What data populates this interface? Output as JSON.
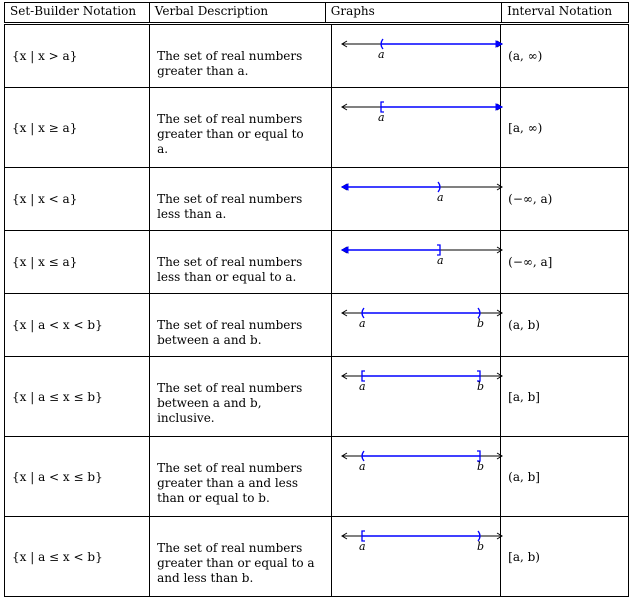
{
  "headers": [
    "Set-Builder Notation",
    "Verbal Description",
    "Graphs",
    "Interval Notation"
  ],
  "rows": [
    {
      "set_parts": [
        "{x | x > ",
        "a",
        "}"
      ],
      "desc_lines": [
        "The set of real numbers",
        "greater than a."
      ],
      "interval": "(a, ∞)",
      "graph": {
        "labels": [
          "a"
        ],
        "left": {
          "bracket": "(",
          "end": "a"
        },
        "right": {
          "end": "arrow"
        }
      }
    },
    {
      "set_parts": [
        "{x | x ≥ ",
        "a",
        "}"
      ],
      "desc_lines": [
        "The set of real numbers",
        "greater than or equal to",
        "a."
      ],
      "interval": "[a, ∞)",
      "graph": {
        "labels": [
          "a"
        ],
        "left": {
          "bracket": "[",
          "end": "a"
        },
        "right": {
          "end": "arrow"
        }
      }
    },
    {
      "set_parts": [
        "{x | x < ",
        "a",
        "}"
      ],
      "desc_lines": [
        "The set of real numbers",
        "less than a."
      ],
      "interval": "(−∞, a)",
      "graph": {
        "labels": [
          "a"
        ],
        "left": {
          "end": "arrow"
        },
        "right": {
          "bracket": ")",
          "end": "a"
        }
      }
    },
    {
      "set_parts": [
        "{x | x ≤ ",
        "a",
        "}"
      ],
      "desc_lines": [
        "The set of real numbers",
        "less than or equal to a."
      ],
      "interval": "(−∞, a]",
      "graph": {
        "labels": [
          "a"
        ],
        "left": {
          "end": "arrow"
        },
        "right": {
          "bracket": "]",
          "end": "a"
        }
      }
    },
    {
      "set_parts": [
        "{x | a < x < ",
        "b",
        "}"
      ],
      "desc_lines": [
        "The set of real numbers",
        "between a and b."
      ],
      "interval": "(a, b)",
      "graph": {
        "labels": [
          "a",
          "b"
        ],
        "left": {
          "bracket": "(",
          "end": "a"
        },
        "right": {
          "bracket": ")",
          "end": "b"
        }
      }
    },
    {
      "set_parts": [
        "{x | a ≤ x ≤ ",
        "b",
        "}"
      ],
      "desc_lines": [
        "The set of real numbers",
        "between a and b,",
        "inclusive."
      ],
      "interval": "[a, b]",
      "graph": {
        "labels": [
          "a",
          "b"
        ],
        "left": {
          "bracket": "[",
          "end": "a"
        },
        "right": {
          "bracket": "]",
          "end": "b"
        }
      }
    },
    {
      "set_parts": [
        "{x | a < x ≤ ",
        "b",
        "}"
      ],
      "desc_lines": [
        "The set of real numbers",
        "greater than a and less",
        "than or equal to b."
      ],
      "interval": "(a, b]",
      "graph": {
        "labels": [
          "a",
          "b"
        ],
        "left": {
          "bracket": "(",
          "end": "a"
        },
        "right": {
          "bracket": "]",
          "end": "b"
        }
      }
    },
    {
      "set_parts": [
        "{x | a ≤ x < ",
        "b",
        "}"
      ],
      "desc_lines": [
        "The set of real numbers",
        "greater than or equal to a",
        "and less than b."
      ],
      "interval": "[a, b)",
      "graph": {
        "labels": [
          "a",
          "b"
        ],
        "left": {
          "bracket": "[",
          "end": "a"
        },
        "right": {
          "bracket": ")",
          "end": "b"
        }
      }
    }
  ],
  "colors": {
    "interval_line": "#0000ff",
    "axis": "#000000"
  }
}
